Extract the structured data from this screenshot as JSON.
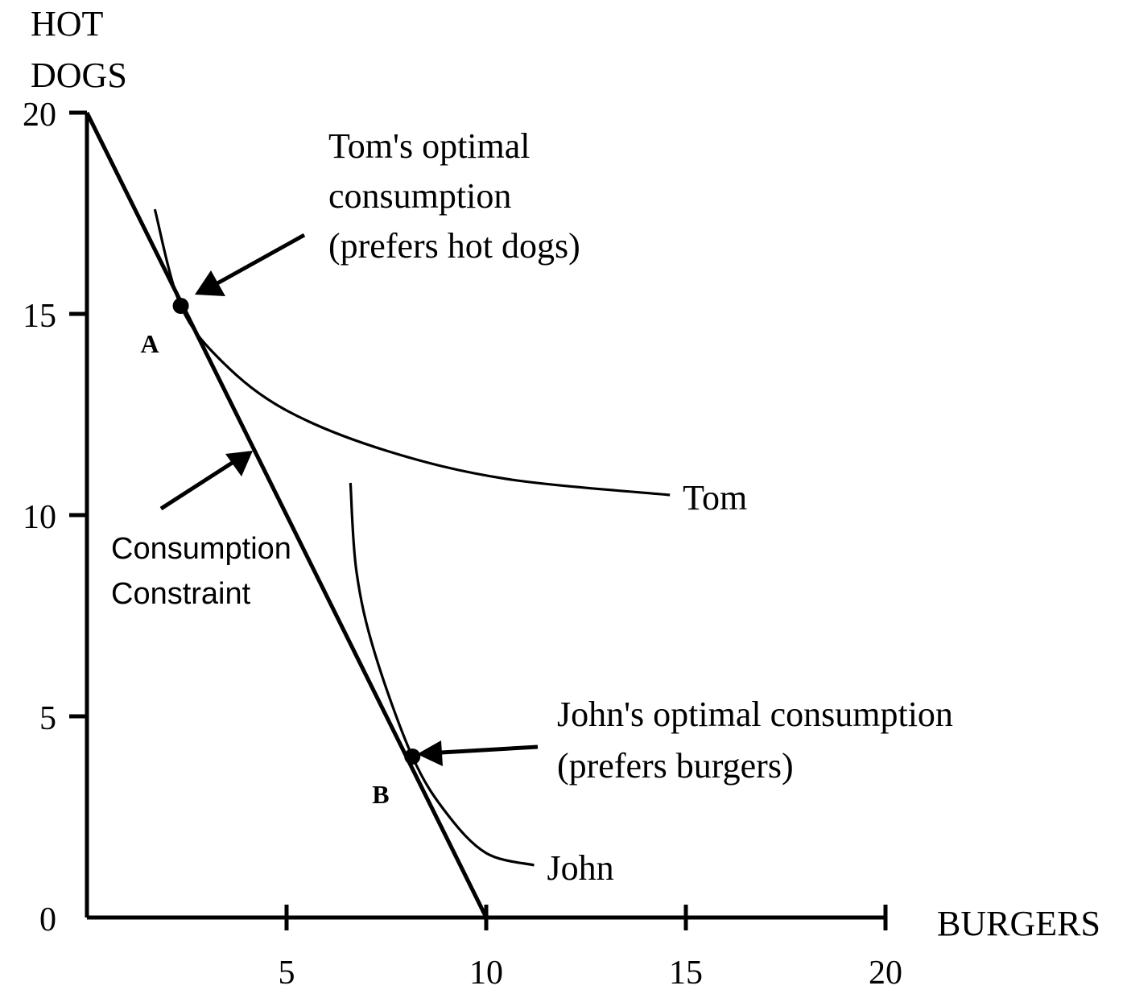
{
  "chart_data": {
    "type": "line",
    "title": "",
    "xlabel": "BURGERS",
    "ylabel_lines": [
      "HOT",
      "DOGS"
    ],
    "xlim": [
      0,
      20
    ],
    "ylim": [
      0,
      20
    ],
    "xticks": [
      5,
      10,
      15,
      20
    ],
    "yticks": [
      0,
      5,
      10,
      15,
      20
    ],
    "grid": false,
    "series": [
      {
        "name": "",
        "values": [
          {
            "x": 0,
            "y": 20
          },
          {
            "x": 10,
            "y": 0
          }
        ]
      },
      {
        "name": "Tom",
        "values": [
          {
            "x": 1.7,
            "y": 17.6
          },
          {
            "x": 2.35,
            "y": 15.2
          },
          {
            "x": 3.4,
            "y": 13.8
          },
          {
            "x": 5.0,
            "y": 12.6
          },
          {
            "x": 7.5,
            "y": 11.6
          },
          {
            "x": 10.5,
            "y": 10.9
          },
          {
            "x": 14.6,
            "y": 10.5
          }
        ]
      },
      {
        "name": "John",
        "values": [
          {
            "x": 6.6,
            "y": 10.8
          },
          {
            "x": 6.75,
            "y": 8.6
          },
          {
            "x": 7.2,
            "y": 6.6
          },
          {
            "x": 8.15,
            "y": 4.0
          },
          {
            "x": 9.0,
            "y": 2.6
          },
          {
            "x": 10.0,
            "y": 1.6
          },
          {
            "x": 11.2,
            "y": 1.3
          }
        ]
      }
    ],
    "points": [
      {
        "label": "A",
        "x": 2.35,
        "y": 15.2
      },
      {
        "label": "B",
        "x": 8.15,
        "y": 4.0
      }
    ],
    "annotations": {
      "tom_optimal": [
        "Tom's optimal",
        "consumption",
        "(prefers hot dogs)"
      ],
      "john_optimal": [
        "John's optimal consumption",
        "(prefers burgers)"
      ],
      "constraint": [
        "Consumption",
        "Constraint"
      ]
    }
  }
}
